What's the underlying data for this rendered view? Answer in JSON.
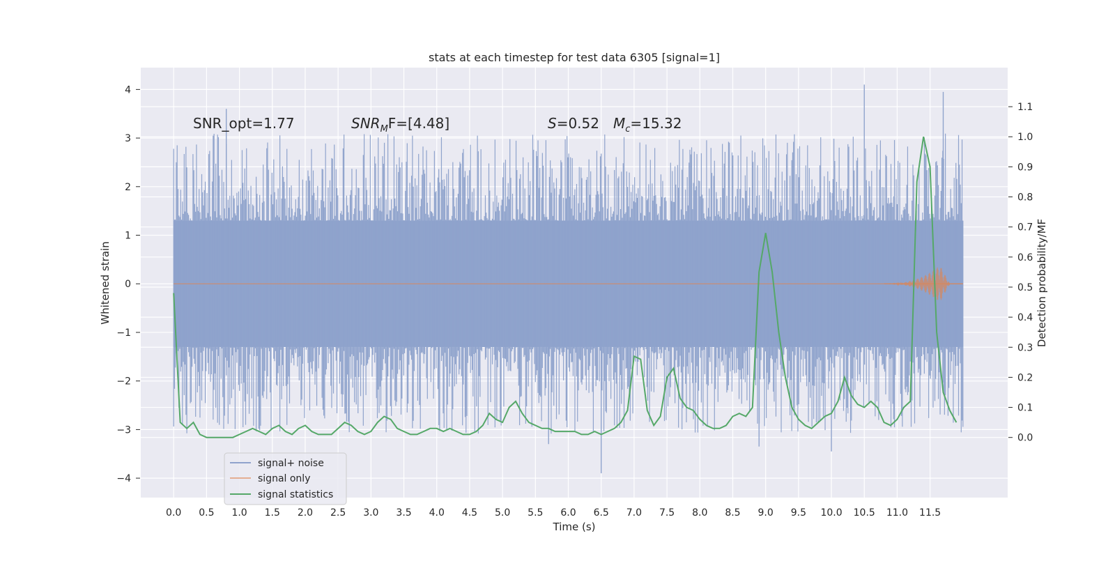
{
  "chart_data": {
    "type": "line",
    "title": "stats at each timestep for test data 6305 [signal=1]",
    "xlabel": "Time (s)",
    "ylabel_left": "Whitened strain",
    "ylabel_right": "Detection probability/MF",
    "xlim": [
      -0.5,
      12.68
    ],
    "ylim_left": [
      -4.4,
      4.45
    ],
    "ylim_right": [
      -0.2,
      1.23
    ],
    "x_ticks": [
      "0.0",
      "0.5",
      "1.0",
      "1.5",
      "2.0",
      "2.5",
      "3.0",
      "3.5",
      "4.0",
      "4.5",
      "5.0",
      "5.5",
      "6.0",
      "6.5",
      "7.0",
      "7.5",
      "8.0",
      "8.5",
      "9.0",
      "9.5",
      "10.0",
      "10.5",
      "11.0",
      "11.5"
    ],
    "y_left_ticks": [
      "4",
      "3",
      "2",
      "1",
      "0",
      "−1",
      "−2",
      "−3",
      "−4"
    ],
    "y_right_ticks": [
      "1.1",
      "1.0",
      "0.9",
      "0.8",
      "0.7",
      "0.6",
      "0.5",
      "0.4",
      "0.3",
      "0.2",
      "0.1",
      "0.0"
    ],
    "grid": true,
    "legend_position": "lower-left",
    "annotations": {
      "snr_opt": "SNR_opt=1.77",
      "snr_mf_var": "SNR",
      "snr_mf_sub": "M",
      "snr_mf_rest": "F=[4.48]",
      "s_var": "S",
      "s_rest": "=0.52",
      "mc_var": "M",
      "mc_sub": "c",
      "mc_rest": "=15.32"
    },
    "series": [
      {
        "name": "signal+ noise",
        "color": "#8fa3cc",
        "axis": "left",
        "x_range": [
          0.0,
          12.0
        ],
        "core_band": [
          -1.3,
          1.3
        ],
        "notable_peaks": [
          {
            "x": 0.8,
            "y": 3.6
          },
          {
            "x": 10.5,
            "y": 4.1
          },
          {
            "x": 11.7,
            "y": 3.95
          },
          {
            "x": 6.5,
            "y": -3.9
          },
          {
            "x": 5.7,
            "y": -3.3
          },
          {
            "x": 8.9,
            "y": -3.35
          },
          {
            "x": 10.0,
            "y": -3.45
          }
        ]
      },
      {
        "name": "signal only",
        "color": "#dd8452",
        "axis": "left",
        "x_range": [
          0.0,
          12.0
        ],
        "chirp": {
          "start": 10.8,
          "peak_x": 11.65,
          "peak_amplitude": 0.38
        }
      },
      {
        "name": "signal statistics",
        "color": "#55a868",
        "axis": "right",
        "x": [
          0.0,
          0.1,
          0.2,
          0.3,
          0.4,
          0.5,
          0.6,
          0.7,
          0.8,
          0.9,
          1.0,
          1.1,
          1.2,
          1.3,
          1.4,
          1.5,
          1.6,
          1.7,
          1.8,
          1.9,
          2.0,
          2.1,
          2.2,
          2.3,
          2.4,
          2.5,
          2.6,
          2.7,
          2.8,
          2.9,
          3.0,
          3.1,
          3.2,
          3.3,
          3.4,
          3.5,
          3.6,
          3.7,
          3.8,
          3.9,
          4.0,
          4.1,
          4.2,
          4.3,
          4.4,
          4.5,
          4.6,
          4.7,
          4.8,
          4.9,
          5.0,
          5.1,
          5.2,
          5.3,
          5.4,
          5.5,
          5.6,
          5.7,
          5.8,
          5.9,
          6.0,
          6.1,
          6.2,
          6.3,
          6.4,
          6.5,
          6.6,
          6.7,
          6.8,
          6.9,
          7.0,
          7.1,
          7.2,
          7.3,
          7.4,
          7.5,
          7.6,
          7.7,
          7.8,
          7.9,
          8.0,
          8.1,
          8.2,
          8.3,
          8.4,
          8.5,
          8.6,
          8.7,
          8.8,
          8.9,
          9.0,
          9.1,
          9.2,
          9.3,
          9.4,
          9.5,
          9.6,
          9.7,
          9.8,
          9.9,
          10.0,
          10.1,
          10.2,
          10.3,
          10.4,
          10.5,
          10.6,
          10.7,
          10.8,
          10.9,
          11.0,
          11.1,
          11.2,
          11.3,
          11.4,
          11.5,
          11.6,
          11.7,
          11.8,
          11.9
        ],
        "values": [
          0.48,
          0.05,
          0.03,
          0.05,
          0.01,
          0.0,
          0.0,
          0.0,
          0.0,
          0.0,
          0.01,
          0.02,
          0.03,
          0.02,
          0.01,
          0.03,
          0.04,
          0.02,
          0.01,
          0.03,
          0.04,
          0.02,
          0.01,
          0.01,
          0.01,
          0.03,
          0.05,
          0.04,
          0.02,
          0.01,
          0.02,
          0.05,
          0.07,
          0.06,
          0.03,
          0.02,
          0.01,
          0.01,
          0.02,
          0.03,
          0.03,
          0.02,
          0.03,
          0.02,
          0.01,
          0.01,
          0.02,
          0.04,
          0.08,
          0.06,
          0.05,
          0.1,
          0.12,
          0.08,
          0.05,
          0.04,
          0.03,
          0.03,
          0.02,
          0.02,
          0.02,
          0.02,
          0.01,
          0.01,
          0.02,
          0.01,
          0.02,
          0.03,
          0.05,
          0.09,
          0.27,
          0.26,
          0.09,
          0.04,
          0.07,
          0.2,
          0.23,
          0.13,
          0.1,
          0.09,
          0.06,
          0.04,
          0.03,
          0.03,
          0.04,
          0.07,
          0.08,
          0.07,
          0.1,
          0.55,
          0.68,
          0.55,
          0.35,
          0.2,
          0.1,
          0.06,
          0.04,
          0.03,
          0.05,
          0.07,
          0.08,
          0.12,
          0.2,
          0.14,
          0.11,
          0.1,
          0.12,
          0.1,
          0.05,
          0.04,
          0.06,
          0.1,
          0.12,
          0.85,
          1.0,
          0.9,
          0.35,
          0.15,
          0.09,
          0.05
        ]
      }
    ]
  }
}
